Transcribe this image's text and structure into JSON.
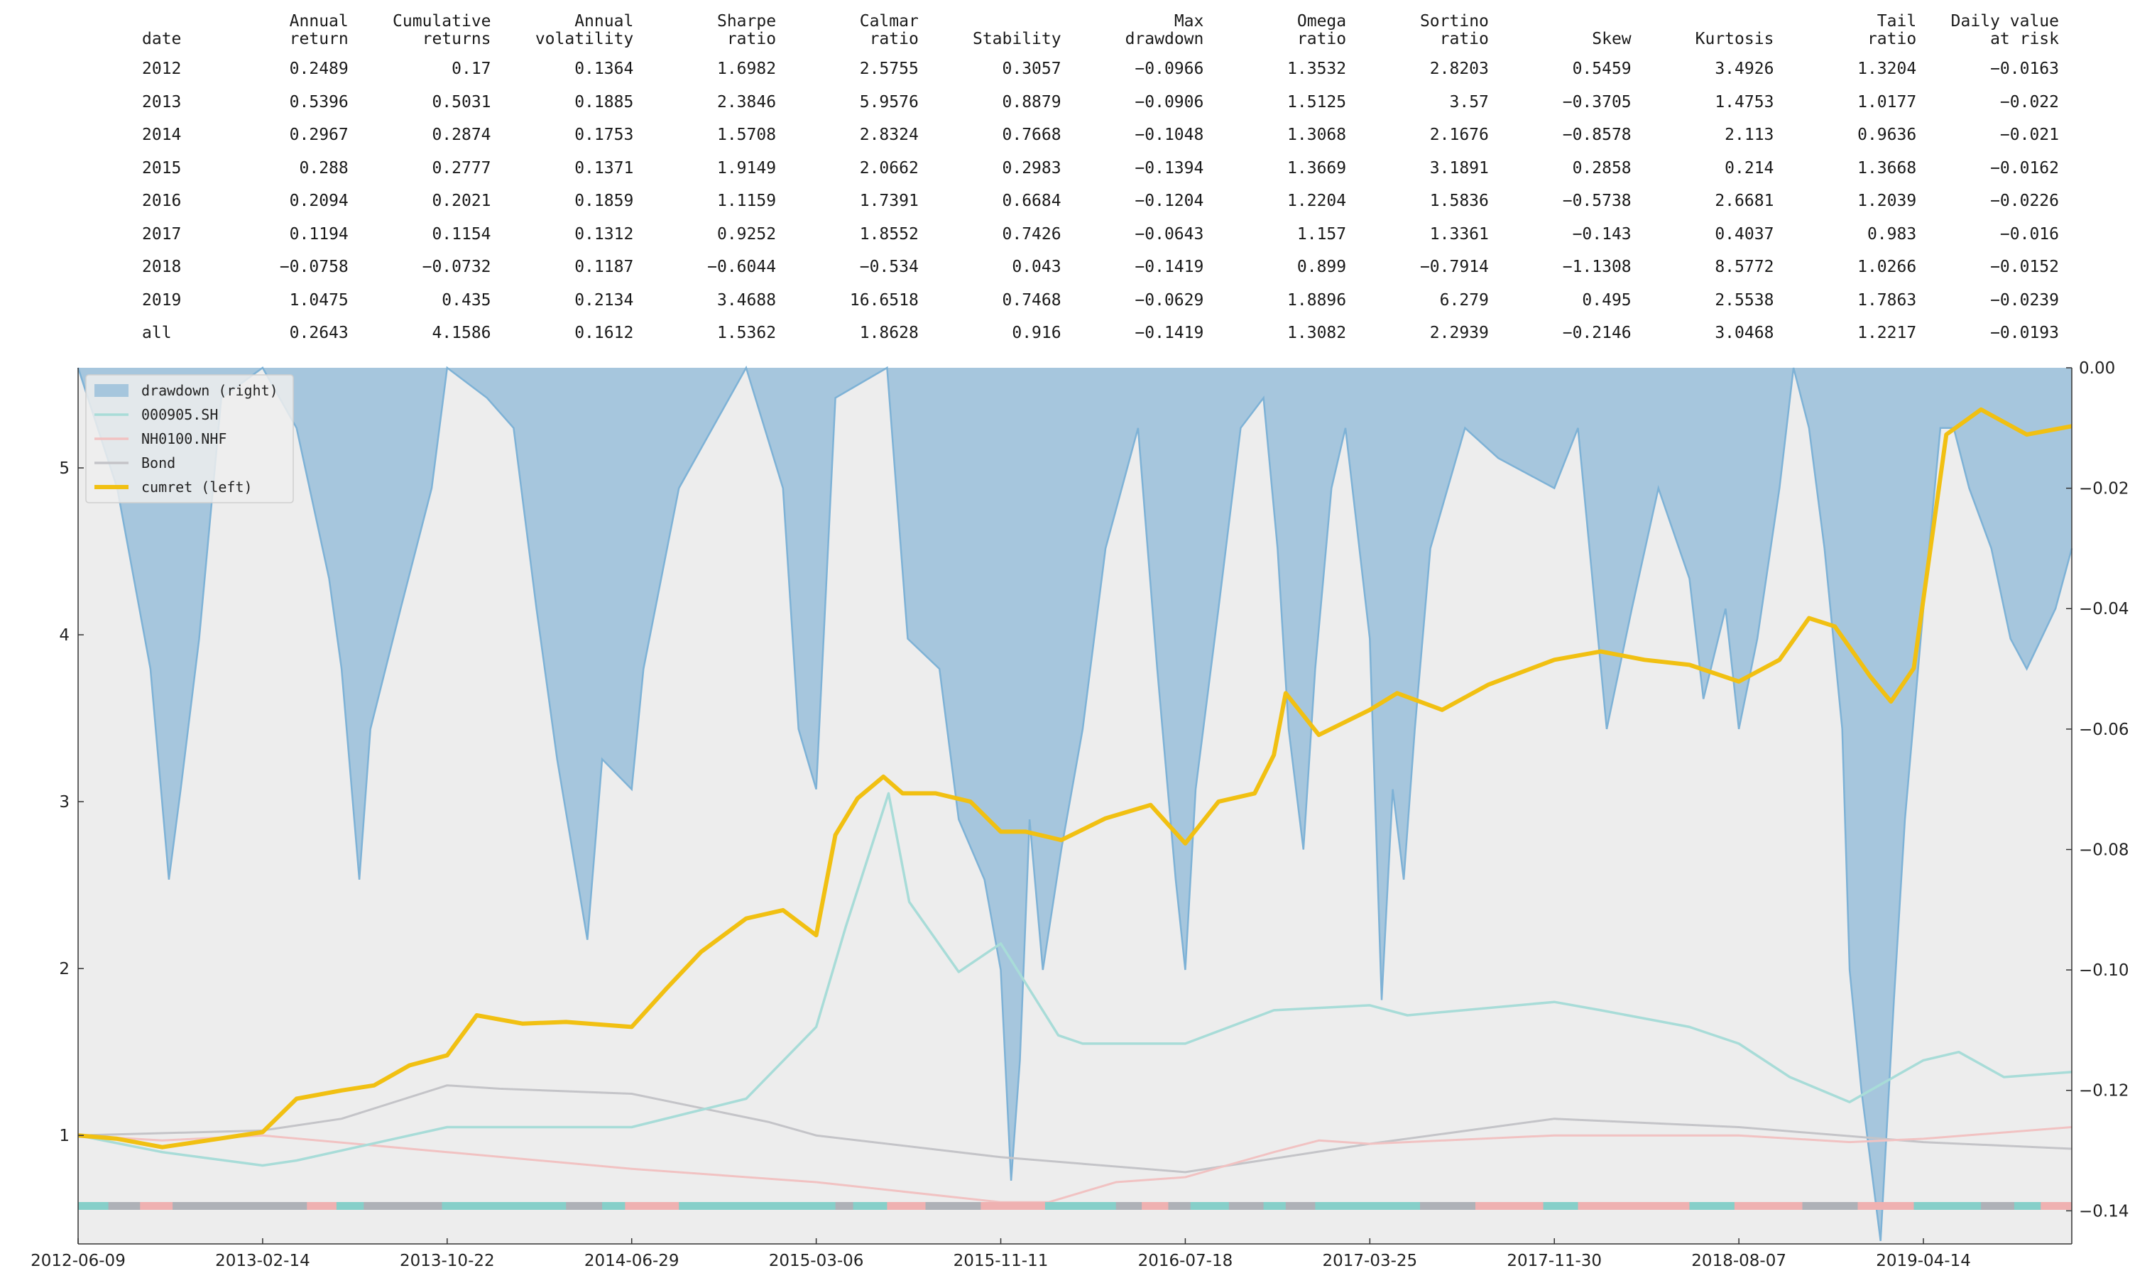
{
  "table": {
    "columns": [
      "date",
      "Annual\nreturn",
      "Cumulative\nreturns",
      "Annual\nvolatility",
      "Sharpe\nratio",
      "Calmar\nratio",
      "Stability",
      "Max\ndrawdown",
      "Omega\nratio",
      "Sortino\nratio",
      "Skew",
      "Kurtosis",
      "Tail\nratio",
      "Daily value\nat risk"
    ],
    "rows": [
      [
        "2012",
        "0.2489",
        "0.17",
        "0.1364",
        "1.6982",
        "2.5755",
        "0.3057",
        "−0.0966",
        "1.3532",
        "2.8203",
        "0.5459",
        "3.4926",
        "1.3204",
        "−0.0163"
      ],
      [
        "2013",
        "0.5396",
        "0.5031",
        "0.1885",
        "2.3846",
        "5.9576",
        "0.8879",
        "−0.0906",
        "1.5125",
        "3.57",
        "−0.3705",
        "1.4753",
        "1.0177",
        "−0.022"
      ],
      [
        "2014",
        "0.2967",
        "0.2874",
        "0.1753",
        "1.5708",
        "2.8324",
        "0.7668",
        "−0.1048",
        "1.3068",
        "2.1676",
        "−0.8578",
        "2.113",
        "0.9636",
        "−0.021"
      ],
      [
        "2015",
        "0.288",
        "0.2777",
        "0.1371",
        "1.9149",
        "2.0662",
        "0.2983",
        "−0.1394",
        "1.3669",
        "3.1891",
        "0.2858",
        "0.214",
        "1.3668",
        "−0.0162"
      ],
      [
        "2016",
        "0.2094",
        "0.2021",
        "0.1859",
        "1.1159",
        "1.7391",
        "0.6684",
        "−0.1204",
        "1.2204",
        "1.5836",
        "−0.5738",
        "2.6681",
        "1.2039",
        "−0.0226"
      ],
      [
        "2017",
        "0.1194",
        "0.1154",
        "0.1312",
        "0.9252",
        "1.8552",
        "0.7426",
        "−0.0643",
        "1.157",
        "1.3361",
        "−0.143",
        "0.4037",
        "0.983",
        "−0.016"
      ],
      [
        "2018",
        "−0.0758",
        "−0.0732",
        "0.1187",
        "−0.6044",
        "−0.534",
        "0.043",
        "−0.1419",
        "0.899",
        "−0.7914",
        "−1.1308",
        "8.5772",
        "1.0266",
        "−0.0152"
      ],
      [
        "2019",
        "1.0475",
        "0.435",
        "0.2134",
        "3.4688",
        "16.6518",
        "0.7468",
        "−0.0629",
        "1.8896",
        "6.279",
        "0.495",
        "2.5538",
        "1.7863",
        "−0.0239"
      ],
      [
        "all",
        "0.2643",
        "4.1586",
        "0.1612",
        "1.5362",
        "1.8628",
        "0.916",
        "−0.1419",
        "1.3082",
        "2.2939",
        "−0.2146",
        "3.0468",
        "1.2217",
        "−0.0193"
      ]
    ]
  },
  "chart_data": {
    "type": "line",
    "x_ticks": [
      "2012-06-09",
      "2013-02-14",
      "2013-10-22",
      "2014-06-29",
      "2015-03-06",
      "2015-11-11",
      "2016-07-18",
      "2017-03-25",
      "2017-11-30",
      "2018-08-07",
      "2019-04-14"
    ],
    "x_range": [
      "2012-06-09",
      "2019-11-01"
    ],
    "y_left": {
      "ticks": [
        "1",
        "2",
        "3",
        "4",
        "5"
      ],
      "range": [
        0.35,
        5.6
      ]
    },
    "y_right": {
      "ticks": [
        "0.00",
        "−0.02",
        "−0.04",
        "−0.06",
        "−0.08",
        "−0.10",
        "−0.12",
        "−0.14"
      ],
      "range": [
        -0.1455,
        0
      ]
    },
    "legend": {
      "position": "top-left",
      "items": [
        {
          "label": "drawdown (right)",
          "color": "#a6c6dd",
          "kind": "area"
        },
        {
          "label": "000905.SH",
          "color": "#a8dcd8",
          "kind": "line"
        },
        {
          "label": "NH0100.NHF",
          "color": "#f1c2c2",
          "kind": "line"
        },
        {
          "label": "Bond",
          "color": "#c4c4c8",
          "kind": "line"
        },
        {
          "label": "cumret (left)",
          "color": "#f1c012",
          "kind": "line-bold"
        }
      ]
    },
    "colors": {
      "plot_bg": "#ededed",
      "drawdown_fill": "#a6c6dd",
      "drawdown_line": "#7eb2d6",
      "cumret": "#f1c012",
      "csi500": "#a8dcd8",
      "nh0100": "#f1c2c2",
      "bond": "#c4c4c8",
      "regime_csi500": "#86cfc9",
      "regime_nh0100": "#efb1b1",
      "regime_bond": "#aeb1b7"
    },
    "series": [
      {
        "name": "cumret (left)",
        "axis": "left",
        "x": [
          "2012-06-09",
          "2012-08-01",
          "2012-10-01",
          "2012-12-01",
          "2013-02-14",
          "2013-04-01",
          "2013-06-01",
          "2013-07-15",
          "2013-09-01",
          "2013-10-22",
          "2013-12-01",
          "2014-02-01",
          "2014-04-01",
          "2014-06-29",
          "2014-08-15",
          "2014-10-01",
          "2014-12-01",
          "2015-01-20",
          "2015-03-06",
          "2015-04-01",
          "2015-05-01",
          "2015-06-05",
          "2015-07-01",
          "2015-08-15",
          "2015-10-01",
          "2015-11-11",
          "2015-12-15",
          "2016-02-01",
          "2016-04-01",
          "2016-06-01",
          "2016-07-18",
          "2016-09-01",
          "2016-10-20",
          "2016-11-15",
          "2016-12-01",
          "2017-01-15",
          "2017-03-25",
          "2017-05-01",
          "2017-07-01",
          "2017-09-01",
          "2017-11-30",
          "2018-02-01",
          "2018-04-01",
          "2018-06-01",
          "2018-08-07",
          "2018-10-01",
          "2018-11-10",
          "2018-12-15",
          "2019-02-01",
          "2019-03-01",
          "2019-04-01",
          "2019-05-15",
          "2019-07-01",
          "2019-09-01",
          "2019-11-01"
        ],
        "values": [
          1.0,
          0.98,
          0.93,
          0.97,
          1.02,
          1.22,
          1.27,
          1.3,
          1.42,
          1.48,
          1.72,
          1.67,
          1.68,
          1.65,
          1.88,
          2.1,
          2.3,
          2.35,
          2.2,
          2.8,
          3.02,
          3.15,
          3.05,
          3.05,
          3.0,
          2.82,
          2.82,
          2.77,
          2.9,
          2.98,
          2.75,
          3.0,
          3.05,
          3.28,
          3.65,
          3.4,
          3.55,
          3.65,
          3.55,
          3.7,
          3.85,
          3.9,
          3.85,
          3.82,
          3.72,
          3.85,
          4.1,
          4.05,
          3.75,
          3.6,
          3.8,
          5.2,
          5.35,
          5.2,
          5.25
        ]
      },
      {
        "name": "000905.SH",
        "axis": "left",
        "x": [
          "2012-06-09",
          "2012-10-01",
          "2013-02-14",
          "2013-04-01",
          "2013-10-22",
          "2014-06-29",
          "2014-12-01",
          "2015-03-06",
          "2015-04-15",
          "2015-06-12",
          "2015-07-10",
          "2015-09-15",
          "2015-11-11",
          "2016-01-28",
          "2016-03-01",
          "2016-07-18",
          "2016-11-15",
          "2017-03-25",
          "2017-05-15",
          "2017-11-30",
          "2018-02-01",
          "2018-06-01",
          "2018-08-07",
          "2018-10-15",
          "2019-01-04",
          "2019-04-14",
          "2019-06-01",
          "2019-08-01",
          "2019-11-01"
        ],
        "values": [
          1.0,
          0.9,
          0.82,
          0.85,
          1.05,
          1.05,
          1.22,
          1.65,
          2.25,
          3.05,
          2.4,
          1.98,
          2.15,
          1.6,
          1.55,
          1.55,
          1.75,
          1.78,
          1.72,
          1.8,
          1.75,
          1.65,
          1.55,
          1.35,
          1.2,
          1.45,
          1.5,
          1.35,
          1.38
        ]
      },
      {
        "name": "NH0100.NHF",
        "axis": "left",
        "x": [
          "2012-06-09",
          "2012-10-01",
          "2013-02-14",
          "2013-10-22",
          "2014-06-29",
          "2015-03-06",
          "2015-11-11",
          "2016-01-15",
          "2016-04-15",
          "2016-07-18",
          "2016-11-15",
          "2017-01-15",
          "2017-03-25",
          "2017-11-30",
          "2018-08-07",
          "2019-01-04",
          "2019-04-14",
          "2019-11-01"
        ],
        "values": [
          1.0,
          0.97,
          1.0,
          0.9,
          0.8,
          0.72,
          0.6,
          0.6,
          0.72,
          0.75,
          0.9,
          0.97,
          0.95,
          1.0,
          1.0,
          0.96,
          0.98,
          1.05
        ]
      },
      {
        "name": "Bond",
        "axis": "left",
        "x": [
          "2012-06-09",
          "2013-02-14",
          "2013-06-01",
          "2013-10-22",
          "2014-01-01",
          "2014-06-29",
          "2015-01-01",
          "2015-03-06",
          "2015-11-11",
          "2016-07-18",
          "2017-03-25",
          "2017-11-30",
          "2018-08-07",
          "2019-04-14",
          "2019-11-01"
        ],
        "values": [
          1.0,
          1.03,
          1.1,
          1.3,
          1.28,
          1.25,
          1.08,
          1.0,
          0.87,
          0.78,
          0.95,
          1.1,
          1.05,
          0.96,
          0.92
        ]
      },
      {
        "name": "drawdown (right)",
        "axis": "right",
        "x": [
          "2012-06-09",
          "2012-08-01",
          "2012-09-15",
          "2012-10-10",
          "2012-10-26",
          "2012-11-20",
          "2012-12-20",
          "2013-02-14",
          "2013-04-01",
          "2013-05-15",
          "2013-06-01",
          "2013-06-25",
          "2013-07-10",
          "2013-08-20",
          "2013-10-01",
          "2013-10-22",
          "2013-12-15",
          "2014-01-20",
          "2014-02-20",
          "2014-03-20",
          "2014-04-30",
          "2014-05-20",
          "2014-06-29",
          "2014-07-15",
          "2014-09-01",
          "2014-12-01",
          "2015-01-20",
          "2015-02-10",
          "2015-03-06",
          "2015-04-01",
          "2015-06-10",
          "2015-07-08",
          "2015-08-20",
          "2015-09-15",
          "2015-10-20",
          "2015-11-11",
          "2015-11-25",
          "2015-12-07",
          "2015-12-20",
          "2016-01-07",
          "2016-02-01",
          "2016-03-01",
          "2016-04-01",
          "2016-05-15",
          "2016-06-10",
          "2016-07-05",
          "2016-07-18",
          "2016-08-01",
          "2016-09-01",
          "2016-10-01",
          "2016-11-01",
          "2016-11-20",
          "2016-12-05",
          "2016-12-25",
          "2017-01-10",
          "2017-02-01",
          "2017-02-20",
          "2017-03-25",
          "2017-04-10",
          "2017-04-25",
          "2017-05-10",
          "2017-05-25",
          "2017-06-15",
          "2017-08-01",
          "2017-09-15",
          "2017-11-30",
          "2018-01-01",
          "2018-02-09",
          "2018-03-15",
          "2018-04-20",
          "2018-06-01",
          "2018-06-20",
          "2018-07-20",
          "2018-08-07",
          "2018-09-01",
          "2018-10-01",
          "2018-10-20",
          "2018-11-10",
          "2018-12-01",
          "2018-12-25",
          "2019-01-04",
          "2019-01-20",
          "2019-02-15",
          "2019-03-05",
          "2019-03-20",
          "2019-04-14",
          "2019-05-07",
          "2019-05-25",
          "2019-06-15",
          "2019-07-15",
          "2019-08-10",
          "2019-09-01",
          "2019-10-10",
          "2019-11-01"
        ],
        "values": [
          0.0,
          -0.02,
          -0.05,
          -0.085,
          -0.07,
          -0.045,
          -0.005,
          0.0,
          -0.01,
          -0.035,
          -0.05,
          -0.085,
          -0.06,
          -0.04,
          -0.02,
          0.0,
          -0.005,
          -0.01,
          -0.04,
          -0.065,
          -0.095,
          -0.065,
          -0.07,
          -0.05,
          -0.02,
          0.0,
          -0.02,
          -0.06,
          -0.07,
          -0.005,
          0.0,
          -0.045,
          -0.05,
          -0.075,
          -0.085,
          -0.1,
          -0.135,
          -0.115,
          -0.075,
          -0.1,
          -0.08,
          -0.06,
          -0.03,
          -0.01,
          -0.05,
          -0.085,
          -0.1,
          -0.07,
          -0.04,
          -0.01,
          -0.005,
          -0.03,
          -0.06,
          -0.08,
          -0.05,
          -0.02,
          -0.01,
          -0.045,
          -0.105,
          -0.07,
          -0.085,
          -0.06,
          -0.03,
          -0.01,
          -0.015,
          -0.02,
          -0.01,
          -0.06,
          -0.04,
          -0.02,
          -0.035,
          -0.055,
          -0.04,
          -0.06,
          -0.045,
          -0.02,
          0.0,
          -0.01,
          -0.03,
          -0.06,
          -0.1,
          -0.12,
          -0.145,
          -0.105,
          -0.075,
          -0.04,
          -0.01,
          -0.01,
          -0.02,
          -0.03,
          -0.045,
          -0.05,
          -0.04,
          -0.03
        ]
      }
    ],
    "regime_bar": [
      {
        "from": "2012-06-09",
        "to": "2012-07-20",
        "asset": "000905.SH"
      },
      {
        "from": "2012-07-20",
        "to": "2012-09-01",
        "asset": "Bond"
      },
      {
        "from": "2012-09-01",
        "to": "2012-10-15",
        "asset": "NH0100.NHF"
      },
      {
        "from": "2012-10-15",
        "to": "2012-11-20",
        "asset": "Bond"
      },
      {
        "from": "2012-11-20",
        "to": "2013-04-15",
        "asset": "Bond"
      },
      {
        "from": "2013-04-15",
        "to": "2013-05-25",
        "asset": "NH0100.NHF"
      },
      {
        "from": "2013-05-25",
        "to": "2013-07-01",
        "asset": "000905.SH"
      },
      {
        "from": "2013-07-01",
        "to": "2013-10-15",
        "asset": "Bond"
      },
      {
        "from": "2013-10-15",
        "to": "2014-04-01",
        "asset": "000905.SH"
      },
      {
        "from": "2014-04-01",
        "to": "2014-05-20",
        "asset": "Bond"
      },
      {
        "from": "2014-05-20",
        "to": "2014-06-20",
        "asset": "000905.SH"
      },
      {
        "from": "2014-06-20",
        "to": "2014-09-01",
        "asset": "NH0100.NHF"
      },
      {
        "from": "2014-09-01",
        "to": "2015-04-01",
        "asset": "000905.SH"
      },
      {
        "from": "2015-04-01",
        "to": "2015-04-25",
        "asset": "Bond"
      },
      {
        "from": "2015-04-25",
        "to": "2015-06-10",
        "asset": "000905.SH"
      },
      {
        "from": "2015-06-10",
        "to": "2015-08-01",
        "asset": "NH0100.NHF"
      },
      {
        "from": "2015-08-01",
        "to": "2015-10-15",
        "asset": "Bond"
      },
      {
        "from": "2015-10-15",
        "to": "2016-01-10",
        "asset": "NH0100.NHF"
      },
      {
        "from": "2016-01-10",
        "to": "2016-04-15",
        "asset": "000905.SH"
      },
      {
        "from": "2016-04-15",
        "to": "2016-05-20",
        "asset": "Bond"
      },
      {
        "from": "2016-05-20",
        "to": "2016-06-25",
        "asset": "NH0100.NHF"
      },
      {
        "from": "2016-06-25",
        "to": "2016-07-25",
        "asset": "Bond"
      },
      {
        "from": "2016-07-25",
        "to": "2016-09-15",
        "asset": "000905.SH"
      },
      {
        "from": "2016-09-15",
        "to": "2016-11-01",
        "asset": "Bond"
      },
      {
        "from": "2016-11-01",
        "to": "2016-12-01",
        "asset": "000905.SH"
      },
      {
        "from": "2016-12-01",
        "to": "2017-01-10",
        "asset": "Bond"
      },
      {
        "from": "2017-01-10",
        "to": "2017-06-01",
        "asset": "000905.SH"
      },
      {
        "from": "2017-06-01",
        "to": "2017-08-15",
        "asset": "Bond"
      },
      {
        "from": "2017-08-15",
        "to": "2017-11-15",
        "asset": "NH0100.NHF"
      },
      {
        "from": "2017-11-15",
        "to": "2018-01-01",
        "asset": "000905.SH"
      },
      {
        "from": "2018-01-01",
        "to": "2018-06-01",
        "asset": "NH0100.NHF"
      },
      {
        "from": "2018-06-01",
        "to": "2018-08-01",
        "asset": "000905.SH"
      },
      {
        "from": "2018-08-01",
        "to": "2018-11-01",
        "asset": "NH0100.NHF"
      },
      {
        "from": "2018-11-01",
        "to": "2019-01-15",
        "asset": "Bond"
      },
      {
        "from": "2019-01-15",
        "to": "2019-04-01",
        "asset": "NH0100.NHF"
      },
      {
        "from": "2019-04-01",
        "to": "2019-07-01",
        "asset": "000905.SH"
      },
      {
        "from": "2019-07-01",
        "to": "2019-08-15",
        "asset": "Bond"
      },
      {
        "from": "2019-08-15",
        "to": "2019-09-20",
        "asset": "000905.SH"
      },
      {
        "from": "2019-09-20",
        "to": "2019-11-01",
        "asset": "NH0100.NHF"
      }
    ]
  }
}
